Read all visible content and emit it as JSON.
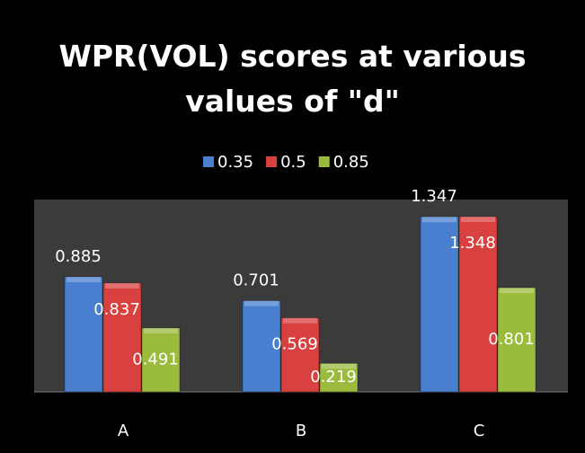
{
  "chart_data": {
    "type": "bar",
    "title": "WPR(VOL) scores at various values of \"d\"",
    "categories": [
      "A",
      "B",
      "C"
    ],
    "series": [
      {
        "name": "0.35",
        "color": "#4a7fd0",
        "values": [
          0.885,
          0.701,
          1.347
        ]
      },
      {
        "name": "0.5",
        "color": "#d94040",
        "values": [
          0.837,
          0.569,
          1.348
        ]
      },
      {
        "name": "0.85",
        "color": "#9bbb3c",
        "values": [
          0.491,
          0.219,
          0.801
        ]
      }
    ],
    "legend": "top"
  }
}
